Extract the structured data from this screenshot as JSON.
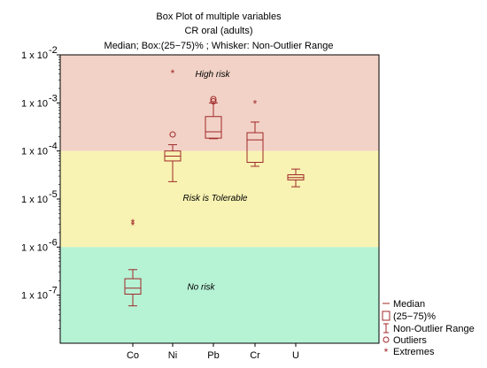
{
  "chart_data": {
    "type": "box",
    "title": "Box Plot of multiple variables",
    "subtitle": "CR oral (adults)",
    "description": "Median; Box:(25−75)%   ; Whisker: Non-Outlier Range",
    "y_scale": "log",
    "ylim": [
      1e-08,
      0.01
    ],
    "y_ticks": [
      {
        "value": 0.01,
        "base": "1 x 10",
        "exp": "-2"
      },
      {
        "value": 0.001,
        "base": "1 x 10",
        "exp": "-3"
      },
      {
        "value": 0.0001,
        "base": "1 x 10",
        "exp": "-4"
      },
      {
        "value": 1e-05,
        "base": "1 x 10",
        "exp": "-5"
      },
      {
        "value": 1e-06,
        "base": "1 x 10",
        "exp": "-6"
      },
      {
        "value": 1e-07,
        "base": "1 x 10",
        "exp": "-7"
      }
    ],
    "zones": [
      {
        "label": "High risk",
        "from": 0.0001,
        "to": 0.01,
        "color": "#f2d2c6"
      },
      {
        "label": "Risk is Tolerable",
        "from": 1e-06,
        "to": 0.0001,
        "color": "#f8f3b2"
      },
      {
        "label": "No risk",
        "from": 1e-08,
        "to": 1e-06,
        "color": "#b6f2d4"
      }
    ],
    "categories": [
      "Co",
      "Ni",
      "Pb",
      "Cr",
      "U"
    ],
    "boxes": [
      {
        "name": "Co",
        "whisker_low": 6e-08,
        "q1": 1.05e-07,
        "median": 1.4e-07,
        "q3": 2.2e-07,
        "whisker_high": 3.4e-07,
        "outliers": [],
        "extremes": [
          3.3e-06,
          2.9e-06
        ]
      },
      {
        "name": "Ni",
        "whisker_low": 2.3e-05,
        "q1": 6.2e-05,
        "median": 7.8e-05,
        "q3": 0.0001,
        "whisker_high": 0.000135,
        "outliers": [
          0.00022
        ],
        "extremes": [
          0.0043
        ]
      },
      {
        "name": "Pb",
        "whisker_low": 0.00018,
        "q1": 0.000185,
        "median": 0.00025,
        "q3": 0.00052,
        "whisker_high": 0.001,
        "outliers": [
          0.0012,
          0.00108
        ],
        "extremes": []
      },
      {
        "name": "Cr",
        "whisker_low": 4.8e-05,
        "q1": 5.8e-05,
        "median": 0.00017,
        "q3": 0.00024,
        "whisker_high": 0.0004,
        "outliers": [],
        "extremes": [
          0.001
        ]
      },
      {
        "name": "U",
        "whisker_low": 1.8e-05,
        "q1": 2.5e-05,
        "median": 2.8e-05,
        "q3": 3.2e-05,
        "whisker_high": 4.2e-05,
        "outliers": [],
        "extremes": []
      }
    ],
    "legend": {
      "placement": "bottom-right",
      "items": [
        {
          "key": "median",
          "label": "Median"
        },
        {
          "key": "box",
          "label": "(25−75)%"
        },
        {
          "key": "whisker",
          "label": "Non-Outlier Range"
        },
        {
          "key": "outlier",
          "label": "Outliers"
        },
        {
          "key": "extreme",
          "label": "Extremes"
        }
      ]
    },
    "colors": {
      "mark": "#a0282a",
      "frame": "#000000"
    }
  }
}
